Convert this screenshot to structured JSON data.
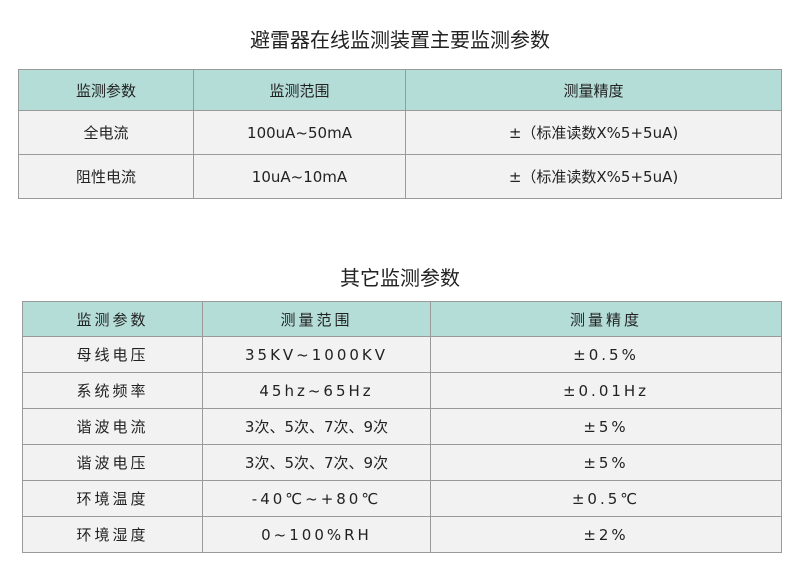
{
  "table1": {
    "title": "避雷器在线监测装置主要监测参数",
    "headers": [
      "监测参数",
      "监测范围",
      "测量精度"
    ],
    "rows": [
      [
        "全电流",
        "100uA~50mA",
        "±（标准读数X%5+5uA)"
      ],
      [
        "阻性电流",
        "10uA~10mA",
        "±（标准读数X%5+5uA)"
      ]
    ]
  },
  "table2": {
    "title": "其它监测参数",
    "headers": [
      "监测参数",
      "测量范围",
      "测量精度"
    ],
    "rows": [
      [
        "母线电压",
        "35KV~1000KV",
        "±0.5%"
      ],
      [
        "系统频率",
        "45hz~65Hz",
        "±0.01Hz"
      ],
      [
        "谐波电流",
        "3次、5次、7次、9次",
        "±5%"
      ],
      [
        "谐波电压",
        "3次、5次、7次、9次",
        "±5%"
      ],
      [
        "环境温度",
        "-40℃~+80℃",
        "±0.5℃"
      ],
      [
        "环境湿度",
        "0~100%RH",
        "±2%"
      ]
    ]
  },
  "colors": {
    "header_bg": "#b4ddd8",
    "row_bg": "#f2f2f2",
    "border": "#9a9a9a"
  }
}
